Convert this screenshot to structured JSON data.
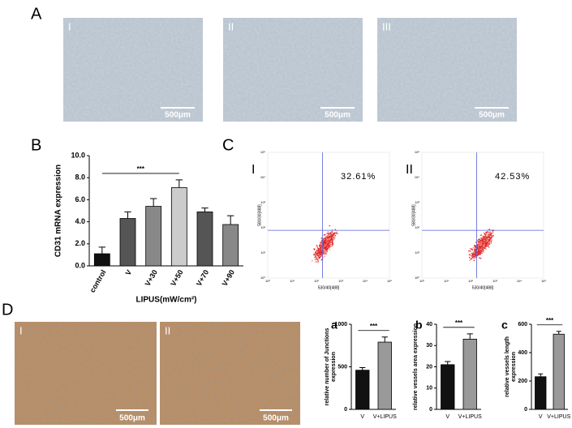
{
  "panel_a": {
    "label": "A",
    "images": [
      {
        "label": "I",
        "scale": "500μm"
      },
      {
        "label": "II",
        "scale": "500μm"
      },
      {
        "label": "III",
        "scale": "500μm"
      }
    ]
  },
  "panel_c": {
    "label": "C",
    "plots": [
      {
        "label": "I",
        "percent": "32.61%",
        "xlabel": "530/40[488]",
        "ylabel": "580/30[488]"
      },
      {
        "label": "II",
        "percent": "42.53%",
        "xlabel": "530/40[488]",
        "ylabel": "580/30[488]"
      }
    ],
    "ticks": [
      "10⁰",
      "10¹",
      "10²",
      "10³",
      "10⁴",
      "10⁵"
    ]
  },
  "panel_d": {
    "label": "D",
    "images": [
      {
        "label": "I",
        "scale": "500μm"
      },
      {
        "label": "II",
        "scale": "500μm"
      }
    ]
  },
  "chart_data": [
    {
      "type": "bar",
      "panel": "B",
      "ylabel": [
        "CD31 mRNA expression"
      ],
      "xlabel": "LIPUS(mW/cm²)",
      "categories": [
        "control",
        "V",
        "V+30",
        "V+50",
        "V+70",
        "V+90"
      ],
      "values": [
        1.1,
        4.3,
        5.4,
        7.1,
        4.9,
        3.75
      ],
      "errors": [
        0.6,
        0.6,
        0.7,
        0.7,
        0.35,
        0.8
      ],
      "colors": [
        "#111111",
        "#555555",
        "#888888",
        "#cccccc",
        "#555555",
        "#888888"
      ],
      "ylim": [
        0,
        10
      ],
      "yticks": [
        {
          "value": 0,
          "label": "0.0"
        },
        {
          "value": 2,
          "label": "2.0"
        },
        {
          "value": 4,
          "label": "4.0"
        },
        {
          "value": 6,
          "label": "6.0"
        },
        {
          "value": 8,
          "label": "8.0"
        },
        {
          "value": 10,
          "label": "10.0"
        }
      ],
      "significance": {
        "label": "***",
        "from": 0,
        "to": 3
      }
    },
    {
      "type": "bar",
      "panel": "a",
      "ylabel": [
        "relative number of Junctions",
        "expression"
      ],
      "categories": [
        "V",
        "V+LIPUS"
      ],
      "values": [
        460,
        790
      ],
      "errors": [
        30,
        60
      ],
      "colors": [
        "#111111",
        "#999999"
      ],
      "ylim": [
        0,
        1000
      ],
      "yticks": [
        0,
        500,
        1000
      ],
      "significance": {
        "label": "***",
        "from": 0,
        "to": 1
      }
    },
    {
      "type": "bar",
      "panel": "b",
      "ylabel": [
        "relative vessels area expression"
      ],
      "categories": [
        "V",
        "V+LIPUS"
      ],
      "values": [
        21,
        33
      ],
      "errors": [
        1.5,
        2.5
      ],
      "colors": [
        "#111111",
        "#999999"
      ],
      "ylim": [
        0,
        40
      ],
      "yticks": [
        0,
        10,
        20,
        30,
        40
      ],
      "significance": {
        "label": "***",
        "from": 0,
        "to": 1
      }
    },
    {
      "type": "bar",
      "panel": "c",
      "ylabel": [
        "relative vessels  length",
        "expression"
      ],
      "categories": [
        "V",
        "V+LIPUS"
      ],
      "values": [
        230,
        530
      ],
      "errors": [
        20,
        20
      ],
      "colors": [
        "#111111",
        "#999999"
      ],
      "ylim": [
        0,
        600
      ],
      "yticks": [
        0,
        200,
        400,
        600
      ],
      "significance": {
        "label": "***",
        "from": 0,
        "to": 1
      }
    }
  ]
}
